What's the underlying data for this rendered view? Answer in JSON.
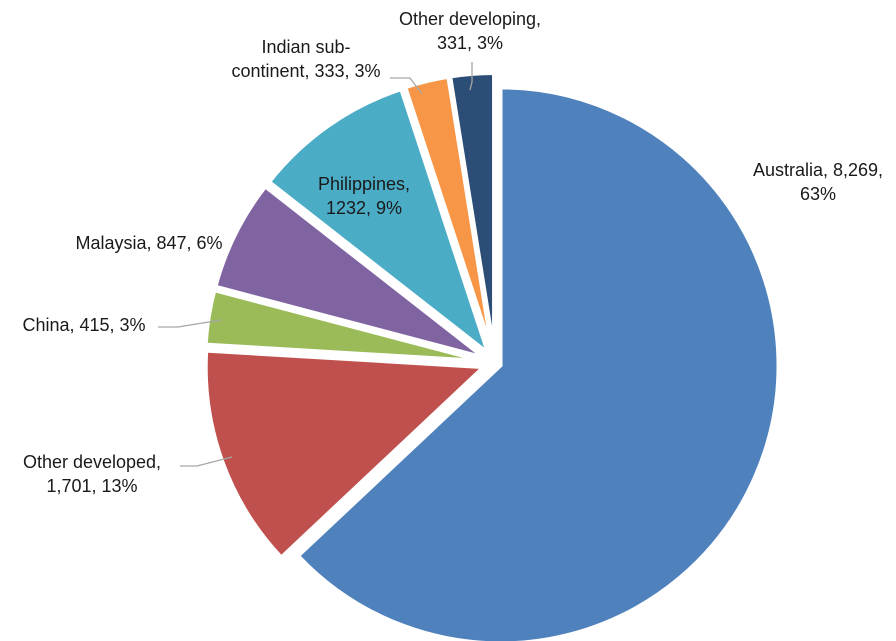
{
  "chart_data": {
    "type": "pie",
    "slices": [
      {
        "name": "Australia",
        "value": 8269,
        "percent": "63%",
        "color": "#4F81BD",
        "label": [
          "Australia, 8,269,",
          "63%"
        ]
      },
      {
        "name": "Other developed",
        "value": 1701,
        "percent": "13%",
        "color": "#C0504D",
        "label": [
          "Other developed,",
          "1,701, 13%"
        ]
      },
      {
        "name": "China",
        "value": 415,
        "percent": "3%",
        "color": "#9BBB59",
        "label": [
          "China, 415, 3%"
        ]
      },
      {
        "name": "Malaysia",
        "value": 847,
        "percent": "6%",
        "color": "#8064A2",
        "label": [
          "Malaysia, 847, 6%"
        ]
      },
      {
        "name": "Philippines",
        "value": 1232,
        "percent": "9%",
        "color": "#4BACC6",
        "label": [
          "Philippines,",
          "1232, 9%"
        ]
      },
      {
        "name": "Indian sub-continent",
        "value": 333,
        "percent": "3%",
        "color": "#F79646",
        "label": [
          "Indian sub-",
          "continent, 333, 3%"
        ]
      },
      {
        "name": "Other developing",
        "value": 331,
        "percent": "3%",
        "color": "#2C4D75",
        "label": [
          "Other developing,",
          "331, 3%"
        ]
      }
    ],
    "start_angle": "12 o'clock",
    "direction": "clockwise",
    "exploded": true,
    "legend": "none"
  }
}
